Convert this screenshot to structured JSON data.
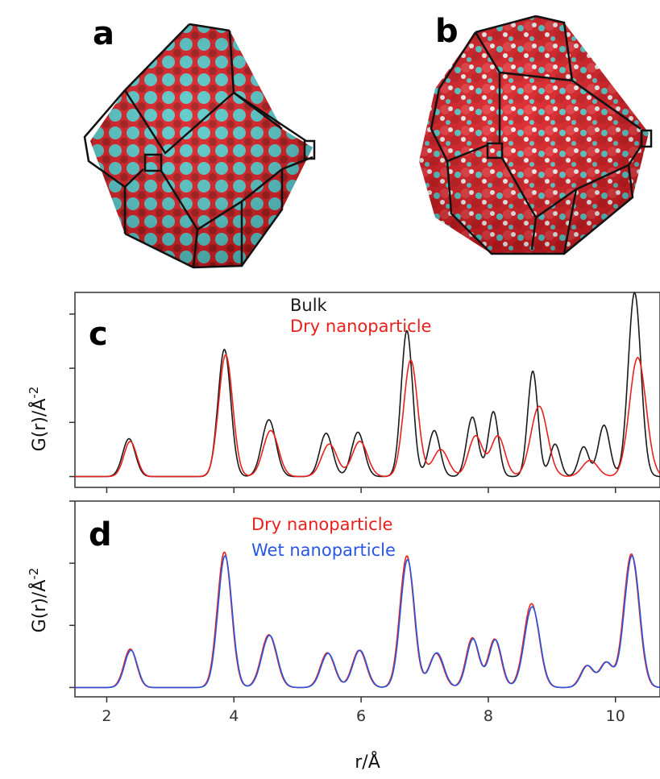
{
  "panels": {
    "a": {
      "letter": "a"
    },
    "b": {
      "letter": "b"
    },
    "c": {
      "letter": "c"
    },
    "d": {
      "letter": "d"
    }
  },
  "colors": {
    "bulk": "#1a1a1a",
    "dry": "#e8211d",
    "wet": "#2a56e0",
    "oxygen": "#d9151b",
    "metal": "#52c7c7",
    "hydrogen": "#f4f4f4"
  },
  "chart_data": [
    {
      "type": "line",
      "panel": "c",
      "ylabel": "G(r)/Å",
      "ylabel_superscript": "-2",
      "xlim": [
        1.5,
        10.7
      ],
      "ylim": [
        -0.2,
        3.4
      ],
      "yticks": [
        0,
        1,
        2,
        3
      ],
      "show_y_tick_labels": false,
      "x_ticks_shown": [
        2,
        4,
        6,
        8,
        10
      ],
      "legend": {
        "placement": "top-center"
      },
      "series": [
        {
          "name": "Bulk",
          "color_key": "bulk",
          "peaks": [
            [
              2.35,
              0.7,
              0.1
            ],
            [
              3.85,
              2.35,
              0.1
            ],
            [
              4.55,
              1.05,
              0.11
            ],
            [
              5.45,
              0.8,
              0.1
            ],
            [
              5.95,
              0.82,
              0.1
            ],
            [
              6.72,
              2.7,
              0.09
            ],
            [
              7.15,
              0.85,
              0.09
            ],
            [
              7.75,
              1.1,
              0.09
            ],
            [
              8.08,
              1.2,
              0.08
            ],
            [
              8.7,
              1.95,
              0.08
            ],
            [
              9.05,
              0.6,
              0.08
            ],
            [
              9.5,
              0.55,
              0.08
            ],
            [
              9.82,
              0.95,
              0.09
            ],
            [
              10.3,
              3.4,
              0.1
            ]
          ]
        },
        {
          "name": "Dry nanoparticle",
          "color_key": "dry",
          "peaks": [
            [
              2.37,
              0.65,
              0.1
            ],
            [
              3.87,
              2.25,
              0.11
            ],
            [
              4.58,
              0.85,
              0.12
            ],
            [
              5.5,
              0.6,
              0.12
            ],
            [
              5.98,
              0.65,
              0.12
            ],
            [
              6.78,
              2.15,
              0.11
            ],
            [
              7.25,
              0.5,
              0.12
            ],
            [
              7.8,
              0.75,
              0.11
            ],
            [
              8.15,
              0.75,
              0.11
            ],
            [
              8.8,
              1.3,
              0.13
            ],
            [
              9.6,
              0.3,
              0.12
            ],
            [
              10.35,
              2.2,
              0.13
            ]
          ]
        }
      ]
    },
    {
      "type": "line",
      "panel": "d",
      "ylabel": "G(r)/Å",
      "ylabel_superscript": "-2",
      "xlabel": "r/Å",
      "xlim": [
        1.5,
        10.7
      ],
      "ylim": [
        -0.15,
        3.0
      ],
      "yticks": [
        0,
        1,
        2,
        3
      ],
      "show_y_tick_labels": false,
      "x_ticks": [
        2,
        4,
        6,
        8,
        10
      ],
      "legend": {
        "placement": "top-center"
      },
      "series": [
        {
          "name": "Dry nanoparticle",
          "color_key": "dry",
          "peaks": [
            [
              2.37,
              0.62,
              0.1
            ],
            [
              3.85,
              2.18,
              0.11
            ],
            [
              4.55,
              0.85,
              0.12
            ],
            [
              5.47,
              0.56,
              0.11
            ],
            [
              5.97,
              0.6,
              0.11
            ],
            [
              6.72,
              2.12,
              0.11
            ],
            [
              7.18,
              0.55,
              0.11
            ],
            [
              7.75,
              0.8,
              0.1
            ],
            [
              8.1,
              0.78,
              0.1
            ],
            [
              8.68,
              1.35,
              0.12
            ],
            [
              9.55,
              0.35,
              0.1
            ],
            [
              9.85,
              0.4,
              0.1
            ],
            [
              10.25,
              2.15,
              0.12
            ]
          ]
        },
        {
          "name": "Wet nanoparticle",
          "color_key": "wet",
          "peaks": [
            [
              2.38,
              0.6,
              0.1
            ],
            [
              3.86,
              2.12,
              0.11
            ],
            [
              4.56,
              0.84,
              0.12
            ],
            [
              5.48,
              0.55,
              0.11
            ],
            [
              5.98,
              0.6,
              0.11
            ],
            [
              6.73,
              2.06,
              0.11
            ],
            [
              7.19,
              0.56,
              0.11
            ],
            [
              7.76,
              0.78,
              0.1
            ],
            [
              8.11,
              0.77,
              0.1
            ],
            [
              8.69,
              1.3,
              0.12
            ],
            [
              9.56,
              0.35,
              0.1
            ],
            [
              9.86,
              0.4,
              0.1
            ],
            [
              10.26,
              2.12,
              0.12
            ]
          ]
        }
      ]
    }
  ]
}
